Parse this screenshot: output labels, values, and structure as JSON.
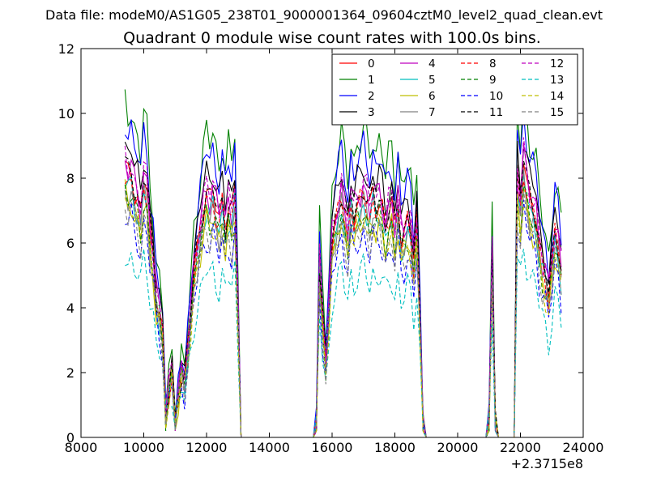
{
  "chart_data": {
    "type": "line",
    "suptitle": "Data file: modeM0/AS1G05_238T01_9000001364_09604cztM0_level2_quad_clean.evt",
    "title": "Quadrant 0 module wise count rates with 100.0s bins.",
    "xlabel": "",
    "ylabel": "",
    "x_offset_label": "+2.3715e8",
    "xlim": [
      8000,
      24000
    ],
    "ylim": [
      0,
      12
    ],
    "x_ticks": [
      8000,
      10000,
      12000,
      14000,
      16000,
      18000,
      20000,
      22000,
      24000
    ],
    "x_tick_labels": [
      "8000",
      "10000",
      "12000",
      "14000",
      "16000",
      "18000",
      "20000",
      "22000",
      "24000"
    ],
    "y_ticks": [
      0,
      2,
      4,
      6,
      8,
      10,
      12
    ],
    "y_tick_labels": [
      "0",
      "2",
      "4",
      "6",
      "8",
      "10",
      "12"
    ],
    "grid": false,
    "legend_position": "top-right",
    "legend_columns": 4,
    "series": [
      {
        "name": "0",
        "color": "#ff0000",
        "dash": "solid",
        "scale": 0.85
      },
      {
        "name": "1",
        "color": "#008000",
        "dash": "solid",
        "scale": 1.06
      },
      {
        "name": "2",
        "color": "#0000ff",
        "dash": "solid",
        "scale": 1.0
      },
      {
        "name": "3",
        "color": "#000000",
        "dash": "solid",
        "scale": 0.93
      },
      {
        "name": "4",
        "color": "#bf00bf",
        "dash": "solid",
        "scale": 0.87
      },
      {
        "name": "5",
        "color": "#00bfbf",
        "dash": "solid",
        "scale": 0.8
      },
      {
        "name": "6",
        "color": "#bfbf00",
        "dash": "solid",
        "scale": 0.76
      },
      {
        "name": "7",
        "color": "#808080",
        "dash": "solid",
        "scale": 0.79
      },
      {
        "name": "8",
        "color": "#ff0000",
        "dash": "dashed",
        "scale": 0.83
      },
      {
        "name": "9",
        "color": "#008000",
        "dash": "dashed",
        "scale": 0.78
      },
      {
        "name": "10",
        "color": "#0000ff",
        "dash": "dashed",
        "scale": 0.7
      },
      {
        "name": "11",
        "color": "#000000",
        "dash": "dashed",
        "scale": 0.86
      },
      {
        "name": "12",
        "color": "#bf00bf",
        "dash": "dashed",
        "scale": 0.88
      },
      {
        "name": "13",
        "color": "#00bfbf",
        "dash": "dashed",
        "scale": 0.58
      },
      {
        "name": "14",
        "color": "#bfbf00",
        "dash": "dashed",
        "scale": 0.75
      },
      {
        "name": "15",
        "color": "#808080",
        "dash": "dashed",
        "scale": 0.73
      }
    ],
    "reference_profile": {
      "x": [
        9400,
        9500,
        9600,
        9700,
        9800,
        9900,
        10000,
        10100,
        10200,
        10300,
        10400,
        10500,
        10600,
        10700,
        10800,
        10900,
        11000,
        11100,
        11200,
        11300,
        11400,
        11500,
        11600,
        11700,
        11800,
        11900,
        12000,
        12100,
        12200,
        12300,
        12400,
        12500,
        12600,
        12700,
        12800,
        12900,
        13000,
        13100,
        15400,
        15500,
        15600,
        15700,
        15800,
        15900,
        16000,
        16100,
        16200,
        16300,
        16400,
        16500,
        16600,
        16700,
        16800,
        16900,
        17000,
        17100,
        17200,
        17300,
        17400,
        17500,
        17600,
        17700,
        17800,
        17900,
        18000,
        18100,
        18200,
        18300,
        18400,
        18500,
        18600,
        18700,
        18800,
        18900,
        19000,
        20900,
        21000,
        21100,
        21200,
        21300,
        21400,
        21800,
        21900,
        22000,
        22100,
        22200,
        22300,
        22400,
        22500,
        22600,
        22700,
        22800,
        22900,
        23000,
        23100,
        23200,
        23300
      ],
      "y": [
        9.8,
        9.4,
        9.6,
        9.0,
        8.7,
        8.1,
        9.4,
        9.0,
        7.4,
        6.6,
        5.1,
        4.6,
        3.7,
        0.8,
        1.8,
        2.5,
        0.5,
        1.6,
        2.4,
        2.0,
        3.3,
        4.6,
        6.1,
        6.8,
        7.6,
        8.4,
        8.9,
        8.5,
        8.9,
        8.4,
        7.9,
        8.6,
        7.7,
        8.5,
        8.0,
        8.9,
        4.7,
        0,
        0,
        0.4,
        6.3,
        4.2,
        2.8,
        4.8,
        7.2,
        7.8,
        8.3,
        8.9,
        8.1,
        7.4,
        8.7,
        8.1,
        8.5,
        8.6,
        9.0,
        8.6,
        8.1,
        8.8,
        8.4,
        8.7,
        8.3,
        7.6,
        8.2,
        8.4,
        7.4,
        8.6,
        7.3,
        7.4,
        7.9,
        7.6,
        6.4,
        7.9,
        4.4,
        0.3,
        0,
        0,
        0.7,
        6.5,
        0.5,
        0,
        0,
        0,
        9.5,
        8.4,
        10.1,
        9.3,
        8.6,
        8.4,
        8.1,
        7.0,
        6.3,
        5.9,
        5.2,
        6.3,
        7.5,
        7.1,
        6.1
      ]
    }
  }
}
